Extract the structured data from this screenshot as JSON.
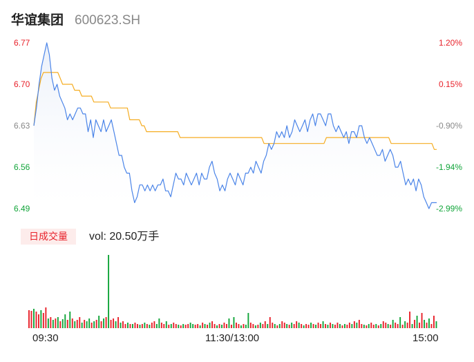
{
  "header": {
    "name": "华谊集团",
    "code": "600623.SH"
  },
  "volume_panel": {
    "badge": "日成交量",
    "vol_label": "vol: 20.50万手"
  },
  "x_ticks": [
    "09:30",
    "11:30/13:00",
    "15:00"
  ],
  "colors": {
    "price_line": "#4a84e8",
    "avg_line": "#f5ac20",
    "up": "#e8212a",
    "down": "#12a53a",
    "flat": "#888888",
    "area_top": "#e8eef9"
  },
  "chart_data": [
    {
      "type": "line",
      "title": "",
      "ylim": [
        6.49,
        6.77
      ],
      "y_ticks_left": [
        "6.77",
        "6.70",
        "6.63",
        "6.56",
        "6.49"
      ],
      "y_ticks_right": [
        "1.20%",
        "0.15%",
        "-0.90%",
        "-1.94%",
        "-2.99%"
      ],
      "series": [
        {
          "values": [
            6.63,
            6.66,
            6.7,
            6.73,
            6.75,
            6.77,
            6.75,
            6.71,
            6.69,
            6.7,
            6.68,
            6.67,
            6.66,
            6.64,
            6.65,
            6.64,
            6.65,
            6.66,
            6.66,
            6.65,
            6.65,
            6.62,
            6.64,
            6.61,
            6.64,
            6.63,
            6.62,
            6.64,
            6.62,
            6.63,
            6.64,
            6.62,
            6.6,
            6.58,
            6.58,
            6.56,
            6.55,
            6.55,
            6.52,
            6.5,
            6.51,
            6.53,
            6.53,
            6.52,
            6.53,
            6.52,
            6.53,
            6.52,
            6.53,
            6.53,
            6.54,
            6.52,
            6.52,
            6.51,
            6.53,
            6.55,
            6.54,
            6.54,
            6.53,
            6.55,
            6.54,
            6.53,
            6.54,
            6.55,
            6.53,
            6.55,
            6.54,
            6.54,
            6.56,
            6.57,
            6.55,
            6.54,
            6.52,
            6.53,
            6.52,
            6.54,
            6.55,
            6.54,
            6.53,
            6.55,
            6.54,
            6.53,
            6.55,
            6.55,
            6.56,
            6.55,
            6.57,
            6.56,
            6.55,
            6.57,
            6.58,
            6.6,
            6.59,
            6.6,
            6.62,
            6.61,
            6.62,
            6.61,
            6.63,
            6.61,
            6.62,
            6.64,
            6.63,
            6.62,
            6.63,
            6.64,
            6.62,
            6.64,
            6.65,
            6.63,
            6.65,
            6.65,
            6.64,
            6.63,
            6.65,
            6.65,
            6.63,
            6.62,
            6.63,
            6.62,
            6.61,
            6.62,
            6.6,
            6.62,
            6.62,
            6.61,
            6.63,
            6.63,
            6.61,
            6.6,
            6.61,
            6.6,
            6.59,
            6.58,
            6.58,
            6.59,
            6.57,
            6.58,
            6.59,
            6.58,
            6.56,
            6.56,
            6.57,
            6.55,
            6.53,
            6.54,
            6.53,
            6.54,
            6.52,
            6.54,
            6.53,
            6.51,
            6.5,
            6.49,
            6.5,
            6.5,
            6.5
          ]
        },
        {
          "values": [
            6.63,
            6.67,
            6.69,
            6.71,
            6.72,
            6.72,
            6.72,
            6.72,
            6.72,
            6.72,
            6.72,
            6.71,
            6.7,
            6.7,
            6.7,
            6.7,
            6.7,
            6.69,
            6.69,
            6.69,
            6.68,
            6.68,
            6.68,
            6.68,
            6.68,
            6.67,
            6.67,
            6.67,
            6.67,
            6.67,
            6.67,
            6.67,
            6.66,
            6.66,
            6.66,
            6.66,
            6.66,
            6.66,
            6.66,
            6.66,
            6.64,
            6.64,
            6.64,
            6.64,
            6.64,
            6.63,
            6.63,
            6.62,
            6.62,
            6.62,
            6.62,
            6.62,
            6.62,
            6.62,
            6.62,
            6.62,
            6.62,
            6.62,
            6.62,
            6.62,
            6.62,
            6.61,
            6.61,
            6.61,
            6.61,
            6.61,
            6.61,
            6.61,
            6.61,
            6.61,
            6.61,
            6.61,
            6.61,
            6.61,
            6.61,
            6.61,
            6.61,
            6.61,
            6.61,
            6.61,
            6.61,
            6.61,
            6.61,
            6.61,
            6.61,
            6.61,
            6.61,
            6.61,
            6.61,
            6.61,
            6.61,
            6.61,
            6.61,
            6.61,
            6.61,
            6.61,
            6.6,
            6.6,
            6.6,
            6.6,
            6.6,
            6.6,
            6.6,
            6.6,
            6.6,
            6.6,
            6.6,
            6.6,
            6.6,
            6.6,
            6.6,
            6.6,
            6.6,
            6.6,
            6.6,
            6.6,
            6.6,
            6.6,
            6.6,
            6.6,
            6.6,
            6.6,
            6.61,
            6.61,
            6.61,
            6.61,
            6.61,
            6.61,
            6.61,
            6.61,
            6.61,
            6.61,
            6.61,
            6.61,
            6.61,
            6.61,
            6.61,
            6.61,
            6.61,
            6.61,
            6.61,
            6.61,
            6.61,
            6.61,
            6.61,
            6.61,
            6.61,
            6.61,
            6.61,
            6.6,
            6.6,
            6.6,
            6.6,
            6.6,
            6.6,
            6.6,
            6.6,
            6.6,
            6.6,
            6.6,
            6.6,
            6.6,
            6.6,
            6.6,
            6.6,
            6.6,
            6.6,
            6.59,
            6.59
          ]
        }
      ]
    },
    {
      "type": "bar",
      "title": "",
      "values": [
        26,
        25,
        28,
        24,
        20,
        26,
        22,
        30,
        14,
        16,
        12,
        14,
        16,
        10,
        13,
        20,
        12,
        24,
        14,
        10,
        12,
        16,
        8,
        12,
        10,
        14,
        8,
        10,
        12,
        18,
        10,
        14,
        16,
        106,
        12,
        14,
        10,
        16,
        8,
        10,
        6,
        8,
        6,
        6,
        8,
        6,
        5,
        6,
        8,
        6,
        5,
        8,
        10,
        6,
        14,
        8,
        6,
        10,
        5,
        6,
        8,
        6,
        5,
        4,
        6,
        5,
        6,
        8,
        6,
        5,
        6,
        4,
        8,
        6,
        5,
        8,
        10,
        6,
        4,
        6,
        5,
        8,
        6,
        14,
        5,
        16,
        8,
        6,
        4,
        6,
        5,
        22,
        8,
        6,
        4,
        5,
        8,
        6,
        10,
        6,
        16,
        8,
        6,
        4,
        6,
        10,
        8,
        6,
        5,
        8,
        6,
        10,
        8,
        6,
        4,
        6,
        5,
        8,
        6,
        5,
        8,
        6,
        10,
        6,
        5,
        8,
        6,
        5,
        8,
        6,
        4,
        6,
        5,
        8,
        6,
        10,
        8,
        12,
        6,
        5,
        4,
        6,
        8,
        5,
        6,
        4,
        6,
        10,
        8,
        6,
        5,
        12,
        8,
        6,
        16,
        5,
        10,
        8,
        24,
        6,
        12,
        18,
        8,
        22,
        12,
        8,
        14,
        6,
        18,
        10
      ],
      "colors": [
        "up",
        "up",
        "down",
        "up",
        "up",
        "down",
        "up",
        "up",
        "down",
        "up",
        "down",
        "up",
        "down",
        "up",
        "down",
        "down",
        "up",
        "down",
        "up",
        "down",
        "up",
        "up",
        "down",
        "up",
        "down",
        "down",
        "up",
        "down",
        "up",
        "down",
        "up",
        "down",
        "up",
        "down",
        "up",
        "up",
        "down",
        "up",
        "down",
        "up",
        "up",
        "down",
        "up",
        "down",
        "up",
        "up",
        "down",
        "up",
        "down",
        "up",
        "down",
        "up",
        "up",
        "down",
        "down",
        "up",
        "up",
        "down",
        "up",
        "down",
        "up",
        "up",
        "down",
        "up",
        "down",
        "up",
        "up",
        "down",
        "down",
        "up",
        "up",
        "down",
        "up",
        "down",
        "up",
        "down",
        "up",
        "up",
        "down",
        "up",
        "down",
        "up",
        "up",
        "down",
        "up",
        "down",
        "up",
        "up",
        "down",
        "up",
        "down",
        "down",
        "up",
        "up",
        "down",
        "up",
        "down",
        "up",
        "up",
        "down",
        "up",
        "up",
        "down",
        "up",
        "down",
        "up",
        "up",
        "down",
        "up",
        "down",
        "up",
        "up",
        "down",
        "up",
        "down",
        "up",
        "up",
        "down",
        "up",
        "down",
        "up",
        "up",
        "down",
        "up",
        "down",
        "up",
        "down",
        "up",
        "up",
        "down",
        "up",
        "down",
        "up",
        "up",
        "down",
        "up",
        "down",
        "up",
        "up",
        "down",
        "up",
        "down",
        "up",
        "up",
        "down",
        "up",
        "down",
        "up",
        "up",
        "down",
        "up",
        "down",
        "up",
        "up",
        "down",
        "up",
        "down",
        "up",
        "up",
        "down",
        "up",
        "down",
        "up",
        "up",
        "down",
        "up",
        "down",
        "up",
        "up",
        "down",
        "up",
        "up"
      ]
    }
  ]
}
